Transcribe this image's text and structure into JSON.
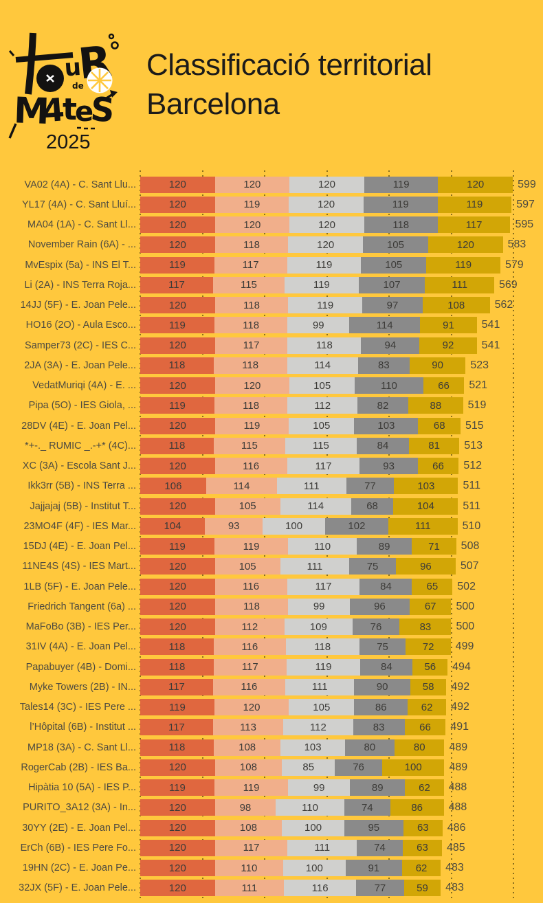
{
  "header": {
    "title_line1": "Classificació territorial",
    "title_line2": "Barcelona",
    "logo": {
      "u": "u",
      "r": "R",
      "de": "de",
      "m": "M",
      "a": "4",
      "t": "t",
      "e": "e",
      "s": "S",
      "year": "2025"
    }
  },
  "chart_data": {
    "type": "bar",
    "variant": "stacked-horizontal",
    "title": "Classificació territorial Barcelona",
    "xlabel": "",
    "ylabel": "",
    "legend": "none",
    "axis": {
      "min": 0,
      "max": 600,
      "gridline_step": 100,
      "gridlines": "dotted"
    },
    "colors": [
      "#E0673F",
      "#F1AF8B",
      "#D0D0CE",
      "#8A8A8A",
      "#D2A606"
    ],
    "rows": [
      {
        "label": "VA02 (4A) - C. Sant Llu...",
        "values": [
          120,
          120,
          120,
          119,
          120
        ],
        "total": 599
      },
      {
        "label": "YL17 (4A) - C. Sant Lluí...",
        "values": [
          120,
          119,
          120,
          119,
          119
        ],
        "total": 597
      },
      {
        "label": "MA04 (1A) - C. Sant Ll...",
        "values": [
          120,
          120,
          120,
          118,
          117
        ],
        "total": 595
      },
      {
        "label": "November Rain (6A) - ...",
        "values": [
          120,
          118,
          120,
          105,
          120
        ],
        "total": 583
      },
      {
        "label": "MvEspix (5a) - INS El T...",
        "values": [
          119,
          117,
          119,
          105,
          119
        ],
        "total": 579
      },
      {
        "label": "Li (2A) - INS Terra Roja...",
        "values": [
          117,
          115,
          119,
          107,
          111
        ],
        "total": 569
      },
      {
        "label": "14JJ (5F) - E. Joan Pele...",
        "values": [
          120,
          118,
          119,
          97,
          108
        ],
        "total": 562
      },
      {
        "label": "HO16 (2O) - Aula Esco...",
        "values": [
          119,
          118,
          99,
          114,
          91
        ],
        "total": 541
      },
      {
        "label": "Samper73 (2C) - IES C...",
        "values": [
          120,
          117,
          118,
          94,
          92
        ],
        "total": 541
      },
      {
        "label": "2JA (3A) - E. Joan Pele...",
        "values": [
          118,
          118,
          114,
          83,
          90
        ],
        "total": 523
      },
      {
        "label": "VedatMuriqi (4A) - E. ...",
        "values": [
          120,
          120,
          105,
          110,
          66
        ],
        "total": 521
      },
      {
        "label": "Pipa (5O) - IES Giola, ...",
        "values": [
          119,
          118,
          112,
          82,
          88
        ],
        "total": 519
      },
      {
        "label": "28DV (4E) - E. Joan Pel...",
        "values": [
          120,
          119,
          105,
          103,
          68
        ],
        "total": 515
      },
      {
        "label": "*+-._ RUMIC _.-+* (4C)...",
        "values": [
          118,
          115,
          115,
          84,
          81
        ],
        "total": 513
      },
      {
        "label": "XC (3A) - Escola Sant J...",
        "values": [
          120,
          116,
          117,
          93,
          66
        ],
        "total": 512
      },
      {
        "label": "Ikk3rr (5B) - INS Terra ...",
        "values": [
          106,
          114,
          111,
          77,
          103
        ],
        "total": 511
      },
      {
        "label": "Jajjajaj (5B) - Institut T...",
        "values": [
          120,
          105,
          114,
          68,
          104
        ],
        "total": 511
      },
      {
        "label": "23MO4F (4F) - IES Mar...",
        "values": [
          104,
          93,
          100,
          102,
          111
        ],
        "total": 510
      },
      {
        "label": "15DJ (4E) - E. Joan Pel...",
        "values": [
          119,
          119,
          110,
          89,
          71
        ],
        "total": 508
      },
      {
        "label": "11NE4S (4S) - IES Mart...",
        "values": [
          120,
          105,
          111,
          75,
          96
        ],
        "total": 507
      },
      {
        "label": "1LB (5F) - E. Joan Pele...",
        "values": [
          120,
          116,
          117,
          84,
          65
        ],
        "total": 502
      },
      {
        "label": "Friedrich Tangent (6a) ...",
        "values": [
          120,
          118,
          99,
          96,
          67
        ],
        "total": 500
      },
      {
        "label": "MaFoBo (3B) - IES Per...",
        "values": [
          120,
          112,
          109,
          76,
          83
        ],
        "total": 500
      },
      {
        "label": "31IV (4A) - E. Joan Pel...",
        "values": [
          118,
          116,
          118,
          75,
          72
        ],
        "total": 499
      },
      {
        "label": "Papabuyer (4B) - Domi...",
        "values": [
          118,
          117,
          119,
          84,
          56
        ],
        "total": 494
      },
      {
        "label": "Myke Towers (2B) - IN...",
        "values": [
          117,
          116,
          111,
          90,
          58
        ],
        "total": 492
      },
      {
        "label": "Tales14 (3C) - IES Pere ...",
        "values": [
          119,
          120,
          105,
          86,
          62
        ],
        "total": 492
      },
      {
        "label": "l’Hôpital (6B) - Institut ...",
        "values": [
          117,
          113,
          112,
          83,
          66
        ],
        "total": 491
      },
      {
        "label": "MP18 (3A) - C. Sant Ll...",
        "values": [
          118,
          108,
          103,
          80,
          80
        ],
        "total": 489
      },
      {
        "label": "RogerCab (2B) - IES Ba...",
        "values": [
          120,
          108,
          85,
          76,
          100
        ],
        "total": 489
      },
      {
        "label": "Hipàtia 10 (5A) - IES P...",
        "values": [
          119,
          119,
          99,
          89,
          62
        ],
        "total": 488
      },
      {
        "label": "PURITO_3A12 (3A) - In...",
        "values": [
          120,
          98,
          110,
          74,
          86
        ],
        "total": 488
      },
      {
        "label": "30YY (2E) - E. Joan Pel...",
        "values": [
          120,
          108,
          100,
          95,
          63
        ],
        "total": 486
      },
      {
        "label": "ErCh (6B) - IES Pere Fo...",
        "values": [
          120,
          117,
          111,
          74,
          63
        ],
        "total": 485
      },
      {
        "label": "19HN (2C) - E. Joan Pe...",
        "values": [
          120,
          110,
          100,
          91,
          62
        ],
        "total": 483
      },
      {
        "label": "32JX (5F) - E. Joan Pele...",
        "values": [
          120,
          111,
          116,
          77,
          59
        ],
        "total": 483
      }
    ]
  }
}
